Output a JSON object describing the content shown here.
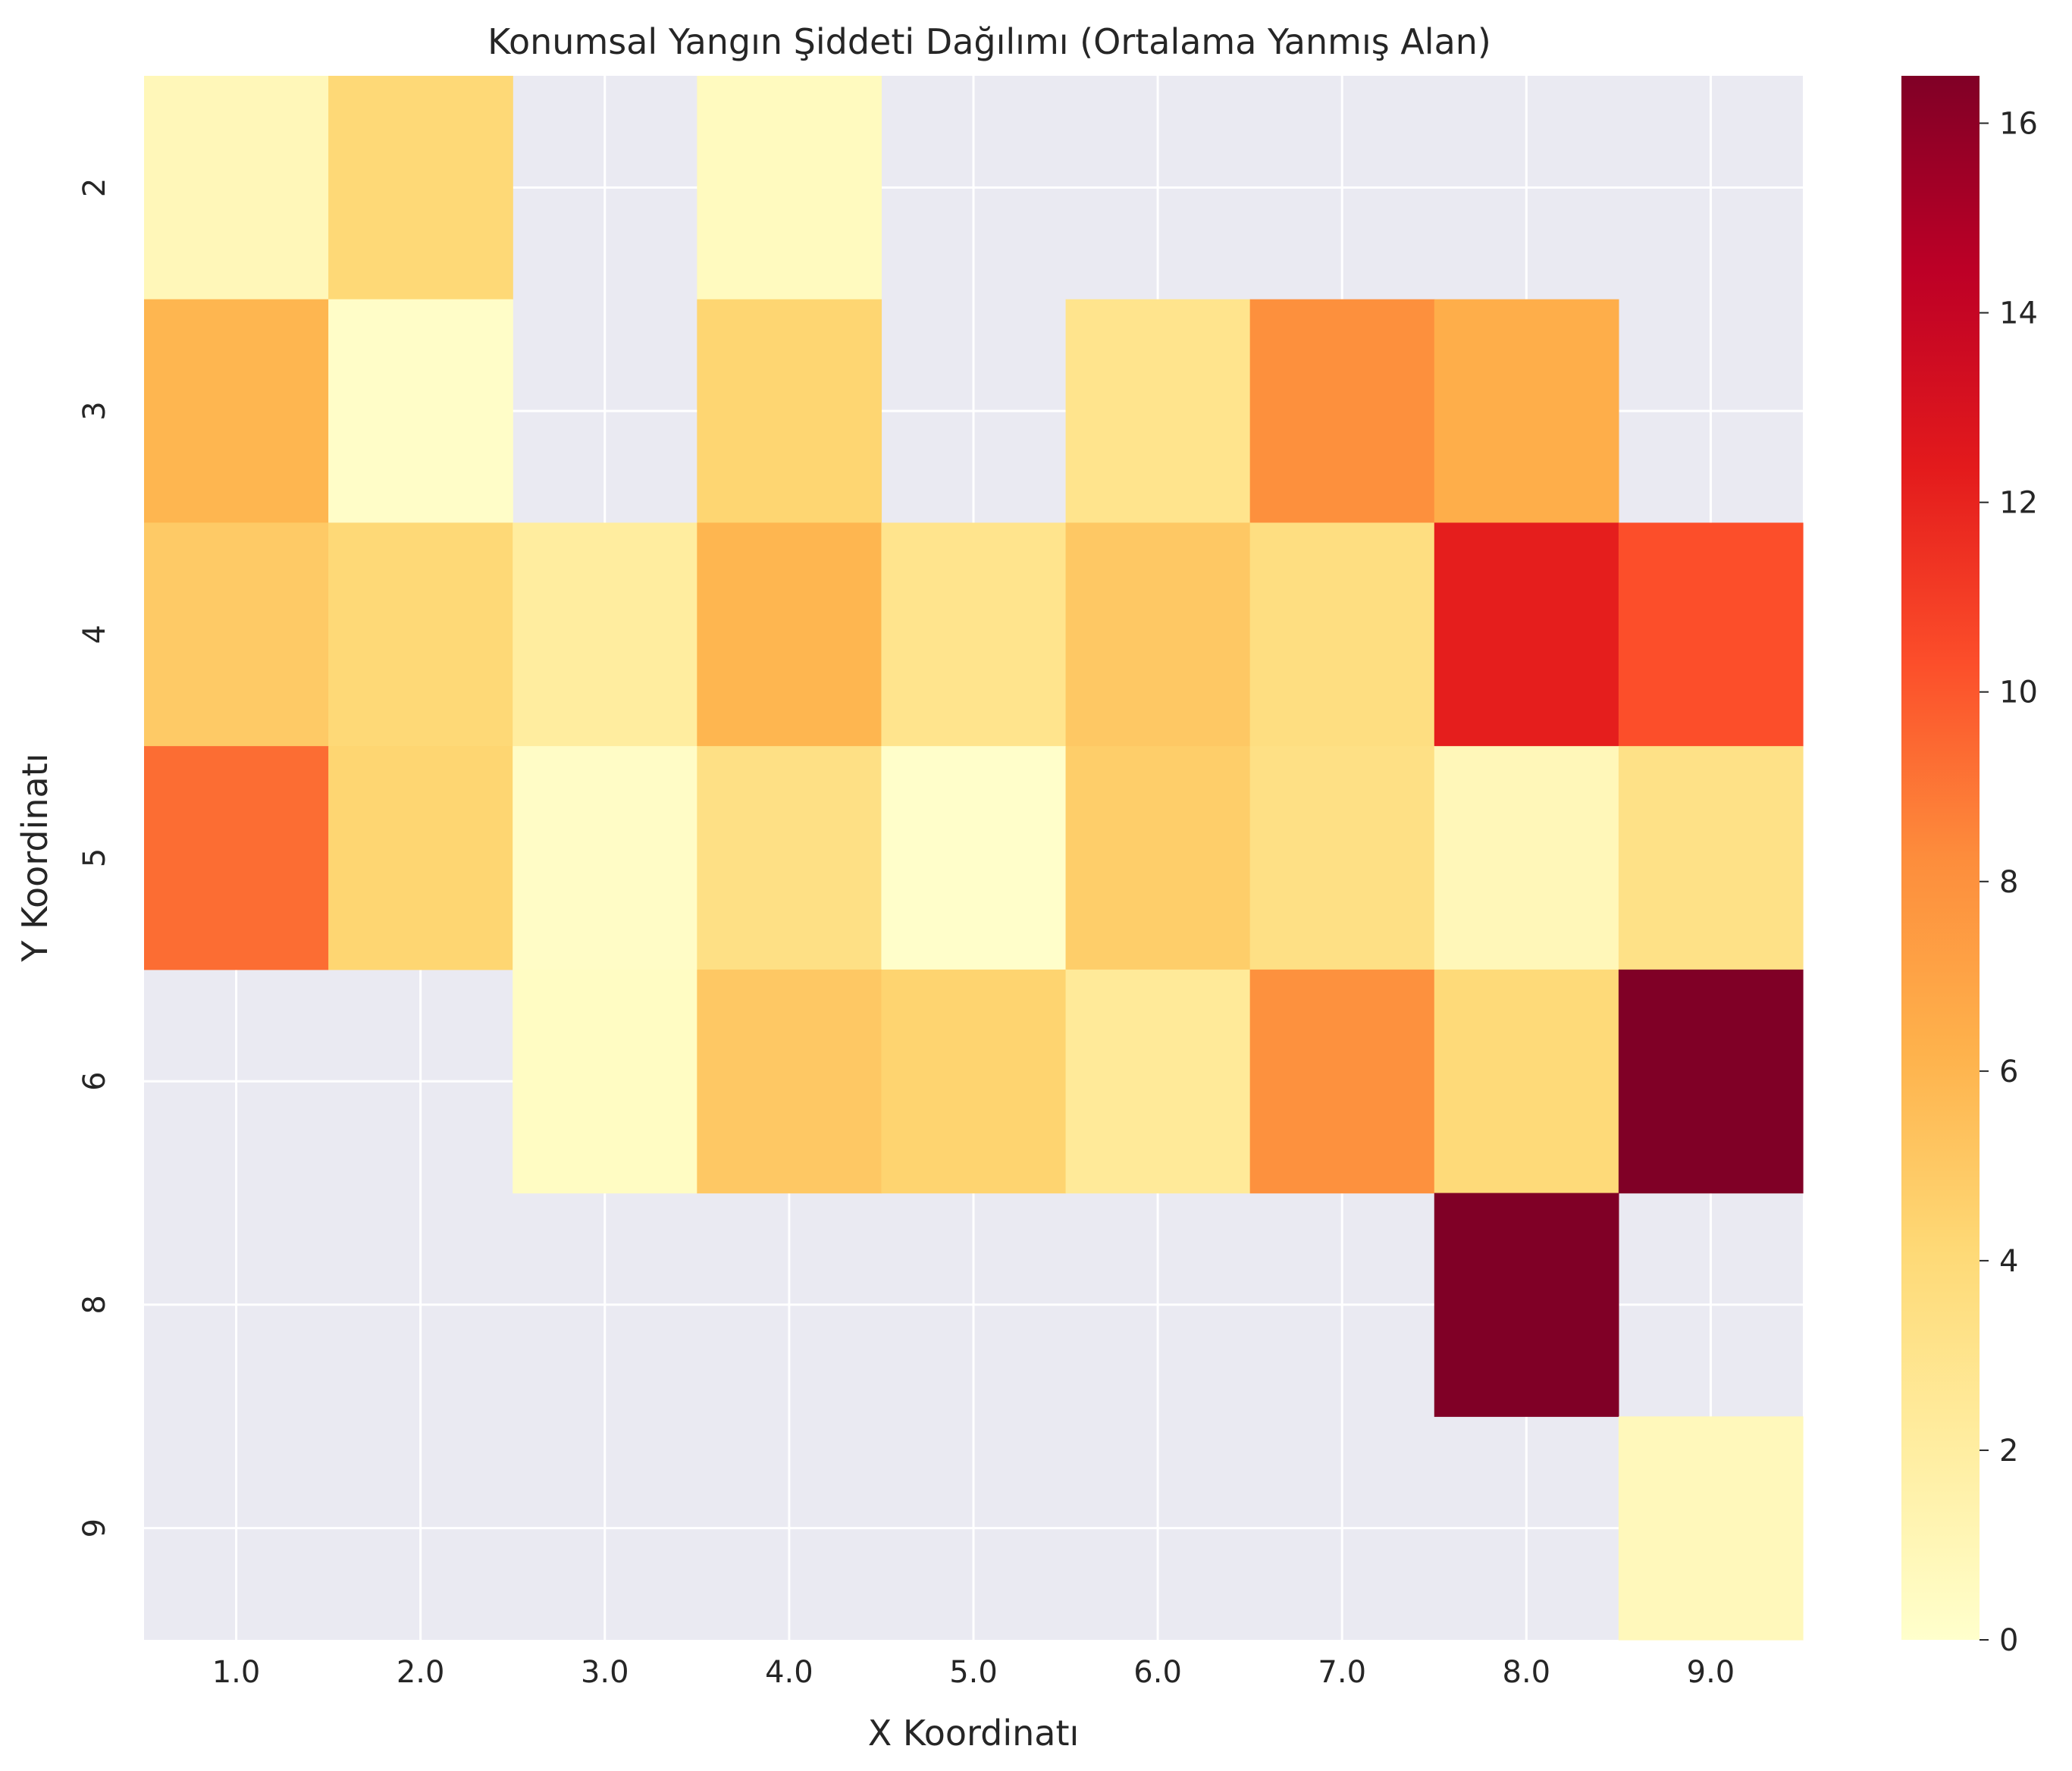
{
  "chart_data": {
    "type": "heatmap",
    "title": "Konumsal Yangın Şiddeti Dağılımı (Ortalama Yanmış Alan)",
    "xlabel": "X Koordinatı",
    "ylabel": "Y Koordinatı",
    "x_categories": [
      "1.0",
      "2.0",
      "3.0",
      "4.0",
      "5.0",
      "6.0",
      "7.0",
      "8.0",
      "9.0"
    ],
    "y_categories": [
      "2",
      "3",
      "4",
      "5",
      "6",
      "8",
      "9"
    ],
    "values": [
      [
        0.9,
        4.1,
        null,
        0.6,
        null,
        null,
        null,
        null,
        null
      ],
      [
        6.0,
        0.2,
        null,
        4.3,
        null,
        3.0,
        8.1,
        6.4,
        null
      ],
      [
        4.9,
        4.1,
        2.1,
        6.0,
        3.0,
        5.0,
        3.6,
        12.2,
        10.3
      ],
      [
        9.3,
        4.3,
        0.3,
        3.4,
        0.1,
        4.7,
        3.4,
        0.9,
        3.3
      ],
      [
        null,
        null,
        0.4,
        5.0,
        4.4,
        2.4,
        8.0,
        4.0,
        16.5
      ],
      [
        null,
        null,
        null,
        null,
        null,
        null,
        null,
        16.5,
        null
      ],
      [
        null,
        null,
        null,
        null,
        null,
        null,
        null,
        null,
        0.8
      ]
    ],
    "colorbar": {
      "min": 0,
      "max": 16.5,
      "ticks": [
        "0",
        "2",
        "4",
        "6",
        "8",
        "10",
        "12",
        "14",
        "16"
      ],
      "colormap": "YlOrRd"
    },
    "background_color": "#eaeaf2",
    "grid": true
  }
}
